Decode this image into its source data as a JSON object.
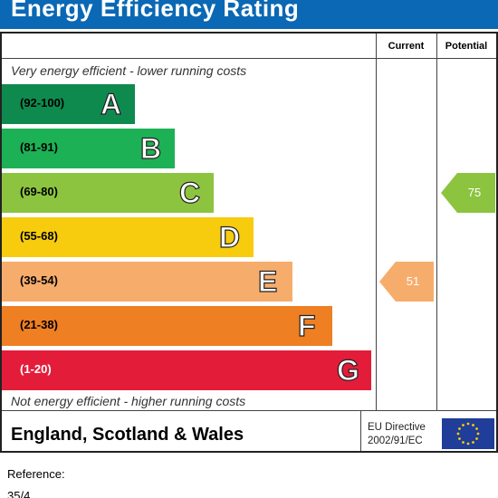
{
  "title": "Energy Efficiency Rating",
  "columns": {
    "current": "Current",
    "potential": "Potential"
  },
  "notes": {
    "top": "Very energy efficient - lower running costs",
    "bottom": "Not energy efficient - higher running costs"
  },
  "footer": {
    "region": "England, Scotland & Wales",
    "directive_line1": "EU Directive",
    "directive_line2": "2002/91/EC"
  },
  "reference": {
    "label": "Reference:",
    "value": "35/4"
  },
  "colors": {
    "title_bar": "#0a68b4",
    "A": "#0f8a4f",
    "B": "#1db155",
    "C": "#8cc43f",
    "D": "#f7cc0f",
    "E": "#f6ad6c",
    "F": "#ee7f23",
    "G": "#e31d39",
    "current_arrow": "#f6ad6c",
    "potential_arrow": "#8cc43f",
    "eu_flag": "#1f3d99",
    "eu_stars": "#ffcc00"
  },
  "chart_data": {
    "type": "bar",
    "categories": [
      "A",
      "B",
      "C",
      "D",
      "E",
      "F",
      "G"
    ],
    "ranges": [
      "(92-100)",
      "(81-91)",
      "(69-80)",
      "(55-68)",
      "(39-54)",
      "(21-38)",
      "(1-20)"
    ],
    "current": {
      "value": 51,
      "band": "E"
    },
    "potential": {
      "value": 75,
      "band": "C"
    }
  }
}
